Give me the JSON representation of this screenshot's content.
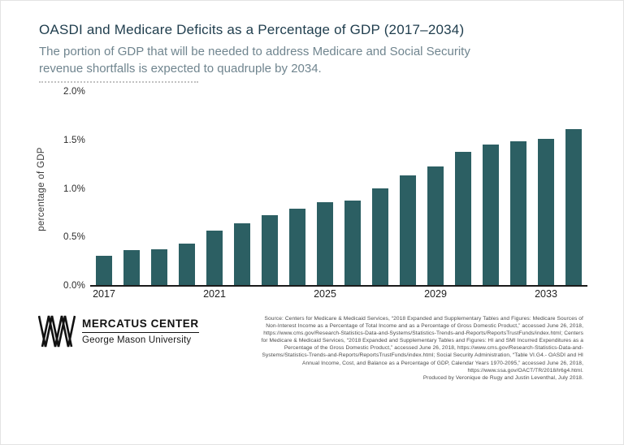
{
  "page": {
    "title": "OASDI and Medicare Deficits as a Percentage of GDP (2017–2034)",
    "subtitle": "The portion of GDP that will be needed to address Medicare and Social Security revenue shortfalls is expected to quadruple by 2034."
  },
  "colors": {
    "bar": "#2c5f63",
    "title_text": "#1f3d4d",
    "subtitle_text": "#70858f",
    "axis_line": "#1b1b1b"
  },
  "chart_data": {
    "type": "bar",
    "title": "OASDI and Medicare Deficits as a Percentage of GDP (2017–2034)",
    "categories": [
      2017,
      2018,
      2019,
      2020,
      2021,
      2022,
      2023,
      2024,
      2025,
      2026,
      2027,
      2028,
      2029,
      2030,
      2031,
      2032,
      2033,
      2034
    ],
    "values": [
      0.3,
      0.36,
      0.37,
      0.43,
      0.56,
      0.64,
      0.72,
      0.79,
      0.85,
      0.87,
      1.0,
      1.13,
      1.22,
      1.37,
      1.45,
      1.48,
      1.51,
      1.61
    ],
    "xlabel": "",
    "ylabel": "percentage of GDP",
    "ylim": [
      0,
      2.0
    ],
    "yticks": [
      0,
      0.5,
      1.0,
      1.5,
      2.0
    ],
    "ytick_labels": [
      "0.0%",
      "0.5%",
      "1.0%",
      "1.5%",
      "2.0%"
    ],
    "xticks": [
      2017,
      2021,
      2025,
      2029,
      2033
    ],
    "grid": false,
    "legend": false
  },
  "footer": {
    "logo": {
      "name": "MERCATUS CENTER",
      "sub": "George Mason University"
    },
    "source_text": "Source: Centers for Medicare & Medicaid Services, “2018 Expanded and Supplementary Tables and Figures: Medicare Sources of Non-Interest Income as a Percentage of Total Income and as a Percentage of Gross Domestic Product,” accessed June 26, 2018, https://www.cms.gov/Research-Statistics-Data-and-Systems/Statistics-Trends-and-Reports/ReportsTrustFunds/index.html; Centers for Medicare & Medicaid Services, “2018 Expanded and Supplementary Tables and Figures: HI and SMI Incurred Expenditures as a Percentage of the Gross Domestic Product,” accessed June 26, 2018, https://www.cms.gov/Research-Statistics-Data-and-Systems/Statistics-Trends-and-Reports/ReportsTrustFunds/index.html; Social Security Administration, “Table VI.G4.- OASDI and HI Annual Income, Cost, and Balance as a Percentage of GDP, Calendar Years 1970-2095,” accessed June 26, 2018, https://www.ssa.gov/OACT/TR/2018/lr6g4.html.",
    "produced_text": "Produced by Veronique de Rugy and Justin Leventhal, July 2018."
  }
}
